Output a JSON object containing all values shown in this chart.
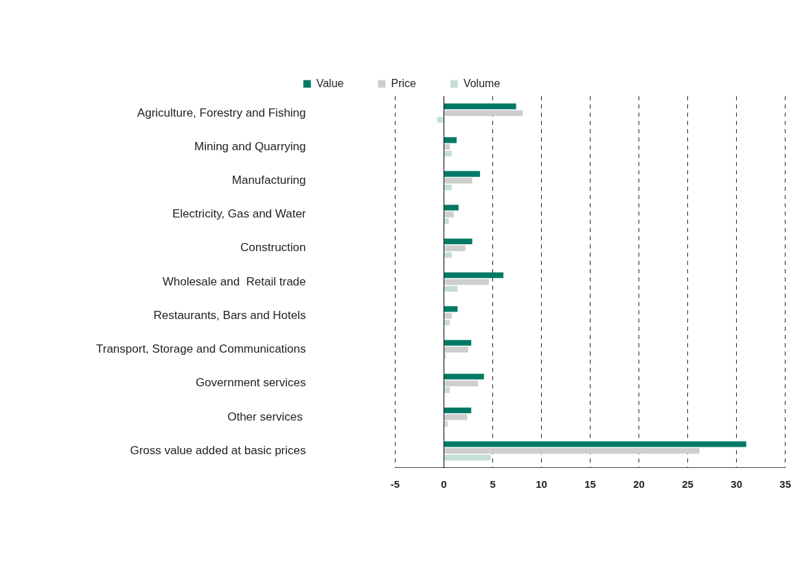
{
  "chart_data": {
    "type": "bar",
    "orientation": "horizontal",
    "categories": [
      "Agriculture, Forestry and Fishing",
      "Mining and Quarrying",
      "Manufacturing",
      "Electricity, Gas and Water",
      "Construction",
      "Wholesale and  Retail trade",
      "Restaurants, Bars and Hotels",
      "Transport, Storage and Communications",
      "Government services",
      "Other services ",
      "Gross value added at basic prices"
    ],
    "series": [
      {
        "name": "Value",
        "color": "#007a65",
        "values": [
          7.4,
          1.3,
          3.7,
          1.5,
          2.9,
          6.1,
          1.4,
          2.8,
          4.1,
          2.8,
          31.0
        ]
      },
      {
        "name": "Price",
        "color": "#cecece",
        "values": [
          8.1,
          0.6,
          2.9,
          1.0,
          2.2,
          4.6,
          0.8,
          2.5,
          3.5,
          2.4,
          26.2
        ]
      },
      {
        "name": "Volume",
        "color": "#c5ddd7",
        "values": [
          -0.7,
          0.8,
          0.8,
          0.5,
          0.8,
          1.4,
          0.6,
          0.2,
          0.6,
          0.4,
          4.8
        ]
      }
    ],
    "xlim": [
      -5,
      35
    ],
    "xticks": [
      -5,
      0,
      5,
      10,
      15,
      20,
      25,
      30,
      35
    ],
    "grid": "x",
    "legend": "top"
  }
}
